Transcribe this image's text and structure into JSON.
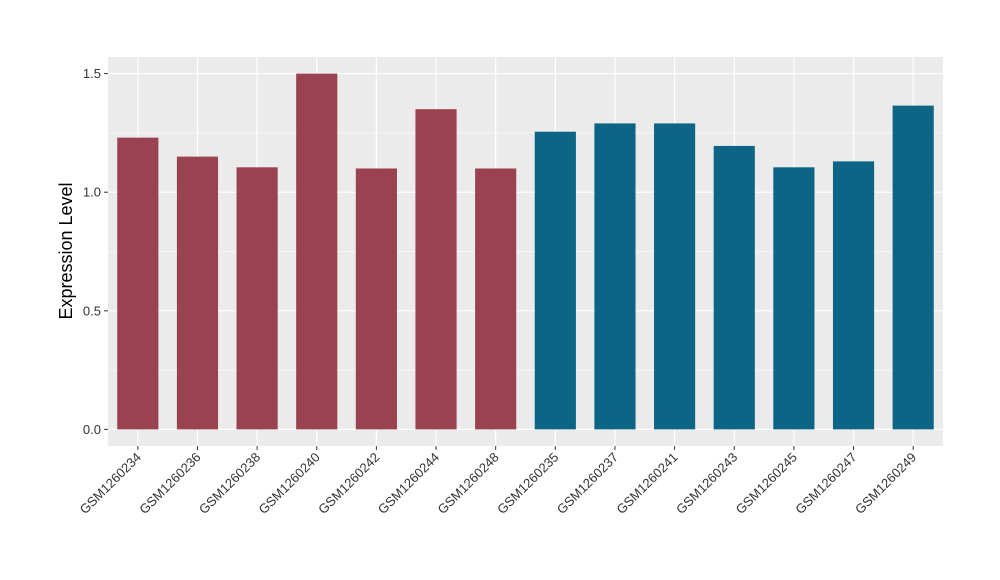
{
  "chart_data": {
    "type": "bar",
    "title": "",
    "xlabel": "",
    "ylabel": "Expression Level",
    "ylim": [
      -0.07,
      1.57
    ],
    "yticks": [
      0.0,
      0.5,
      1.0,
      1.5
    ],
    "ytick_labels": [
      "0.0",
      "0.5",
      "1.0",
      "1.5"
    ],
    "grid": true,
    "colors": {
      "panel": "#ebebeb",
      "grid": "#ffffff",
      "group1": "#9b4250",
      "group2": "#0d6585"
    },
    "categories": [
      "GSM1260234",
      "GSM1260236",
      "GSM1260238",
      "GSM1260240",
      "GSM1260242",
      "GSM1260244",
      "GSM1260248",
      "GSM1260235",
      "GSM1260237",
      "GSM1260241",
      "GSM1260243",
      "GSM1260245",
      "GSM1260247",
      "GSM1260249"
    ],
    "values": [
      1.23,
      1.15,
      1.105,
      1.5,
      1.1,
      1.35,
      1.1,
      1.255,
      1.29,
      1.29,
      1.195,
      1.105,
      1.13,
      1.365
    ],
    "groups": [
      "group1",
      "group1",
      "group1",
      "group1",
      "group1",
      "group1",
      "group1",
      "group2",
      "group2",
      "group2",
      "group2",
      "group2",
      "group2",
      "group2"
    ]
  }
}
